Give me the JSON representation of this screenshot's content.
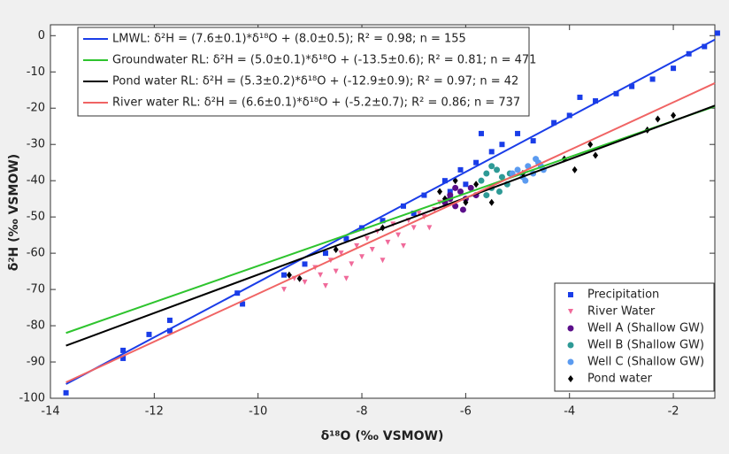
{
  "chart_data": {
    "type": "scatter",
    "x_label": "δ¹⁸O (‰ VSMOW)",
    "y_label": "δ²H (‰ VSMOW)",
    "xlim": [
      -14,
      -1.2
    ],
    "ylim": [
      -100,
      3
    ],
    "xticks": [
      -14,
      -12,
      -10,
      -8,
      -6,
      -4,
      -2
    ],
    "yticks": [
      0,
      -10,
      -20,
      -30,
      -40,
      -50,
      -60,
      -70,
      -80,
      -90,
      -100
    ],
    "grid": false,
    "series": [
      {
        "name": "Precipitation",
        "color": "#1a3de8",
        "marker": "square",
        "x": [
          -13.7,
          -12.6,
          -12.6,
          -12.1,
          -11.7,
          -11.7,
          -10.4,
          -10.3,
          -9.5,
          -9.1,
          -8.7,
          -8.3,
          -8.0,
          -7.6,
          -7.2,
          -6.8,
          -6.4,
          -6.1,
          -6.0,
          -5.8,
          -5.5,
          -5.3,
          -5.0,
          -4.7,
          -4.3,
          -4.0,
          -3.8,
          -3.5,
          -3.1,
          -2.8,
          -2.4,
          -2.0,
          -1.7,
          -1.4,
          -1.15,
          -6.3,
          -7.0,
          -5.7
        ],
        "values": [
          -98.5,
          -86.8,
          -89,
          -82.4,
          -78.5,
          -81.4,
          -71,
          -74,
          -66,
          -63,
          -60,
          -56,
          -53,
          -51,
          -47,
          -44,
          -40,
          -37,
          -41,
          -35,
          -32,
          -30,
          -27,
          -29,
          -24,
          -22,
          -17,
          -18,
          -16,
          -14,
          -12,
          -9,
          -5,
          -3,
          0.7,
          -43,
          -49,
          -27
        ]
      },
      {
        "name": "River Water",
        "color": "#f06a9a",
        "marker": "triangle-down",
        "x": [
          -9.5,
          -9.3,
          -9.1,
          -8.9,
          -8.8,
          -8.6,
          -8.5,
          -8.4,
          -8.2,
          -8.1,
          -8.0,
          -7.9,
          -7.8,
          -7.7,
          -7.5,
          -7.4,
          -7.3,
          -7.1,
          -7.0,
          -6.9,
          -6.8,
          -6.6,
          -6.5,
          -6.4,
          -6.3,
          -8.7,
          -8.3,
          -7.6,
          -7.2,
          -6.7
        ],
        "values": [
          -70,
          -67,
          -68,
          -64,
          -66,
          -62,
          -65,
          -60,
          -63,
          -58,
          -61,
          -56,
          -59,
          -54,
          -57,
          -52,
          -55,
          -51,
          -53,
          -49,
          -50,
          -48,
          -46,
          -47,
          -45,
          -69,
          -67,
          -62,
          -58,
          -53
        ]
      },
      {
        "name": "Well A  (Shallow GW)",
        "color": "#5b0f8a",
        "marker": "circle",
        "x": [
          -6.4,
          -6.3,
          -6.2,
          -6.1,
          -6.0,
          -5.9,
          -6.2,
          -6.05,
          -5.8,
          -6.3
        ],
        "values": [
          -46,
          -44,
          -47,
          -43,
          -45,
          -42,
          -42,
          -48,
          -44,
          -45
        ]
      },
      {
        "name": "Well B  (Shallow GW)",
        "color": "#2e9a96",
        "marker": "circle",
        "x": [
          -5.7,
          -5.6,
          -5.5,
          -5.4,
          -5.3,
          -5.2,
          -5.5,
          -5.35,
          -5.6,
          -5.15
        ],
        "values": [
          -40,
          -38,
          -42,
          -37,
          -39,
          -41,
          -36,
          -43,
          -44,
          -38
        ]
      },
      {
        "name": "Well C  (Shallow GW)",
        "color": "#5b9bf0",
        "marker": "circle",
        "x": [
          -5.0,
          -4.9,
          -4.8,
          -4.7,
          -4.6,
          -4.5,
          -4.85,
          -4.65,
          -5.1,
          -4.55
        ],
        "values": [
          -37,
          -39,
          -36,
          -38,
          -35,
          -37,
          -40,
          -34,
          -38,
          -36
        ]
      },
      {
        "name": "Pond water",
        "color": "#000000",
        "marker": "diamond",
        "x": [
          -9.4,
          -9.2,
          -8.5,
          -7.6,
          -6.5,
          -6.2,
          -6.0,
          -5.8,
          -4.9,
          -4.1,
          -3.9,
          -3.6,
          -3.5,
          -2.5,
          -2.3,
          -2.0,
          -6.4,
          -5.5
        ],
        "values": [
          -66,
          -67,
          -59,
          -53,
          -43,
          -40,
          -46,
          -41,
          -38,
          -34,
          -37,
          -30,
          -33,
          -26,
          -23,
          -22,
          -45,
          -46
        ]
      },
      {
        "name": "LMWL:  δ²H = (7.6±0.1)*δ¹⁸O  + (8.0±0.5); R² = 0.98; n = 155",
        "color": "#1a3de8",
        "type": "line",
        "x": [
          -13.7,
          -1.2
        ],
        "values": [
          -96.1,
          -1.1
        ]
      },
      {
        "name": "Groundwater RL: δ²H = (5.0±0.1)*δ¹⁸O  + (-13.5±0.6); R² = 0.81; n = 471",
        "color": "#2ec42e",
        "type": "line",
        "x": [
          -13.7,
          -1.2
        ],
        "values": [
          -82,
          -19.5
        ]
      },
      {
        "name": "Pond water   RL: δ²H = (5.3±0.2)*δ¹⁸O  + (-12.9±0.9); R² = 0.97; n = 42",
        "color": "#000000",
        "type": "line",
        "x": [
          -13.7,
          -1.2
        ],
        "values": [
          -85.5,
          -19.3
        ]
      },
      {
        "name": "River water   RL: δ²H = (6.6±0.1)*δ¹⁸O  + (-5.2±0.7); R² = 0.86; n = 737",
        "color": "#f06464",
        "type": "line",
        "x": [
          -13.7,
          -1.2
        ],
        "values": [
          -95.6,
          -13.1
        ]
      }
    ]
  }
}
